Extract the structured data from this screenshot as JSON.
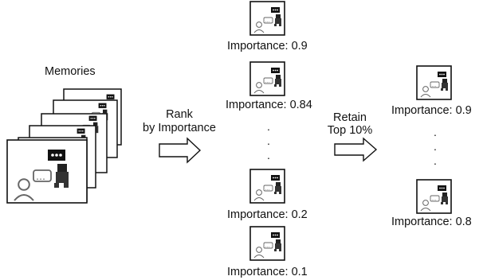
{
  "memories_title": "Memories",
  "step1_label_line1": "Rank",
  "step1_label_line2": "by Importance",
  "step2_label_line1": "Retain",
  "step2_label_line2": "Top 10%",
  "ranked": [
    {
      "label": "Importance: 0.9"
    },
    {
      "label": "Importance: 0.84"
    },
    {
      "label": "Importance: 0.2"
    },
    {
      "label": "Importance: 0.1"
    }
  ],
  "retained": [
    {
      "label": "Importance: 0.9"
    },
    {
      "label": "Importance: 0.8"
    }
  ],
  "ellipsis": "."
}
